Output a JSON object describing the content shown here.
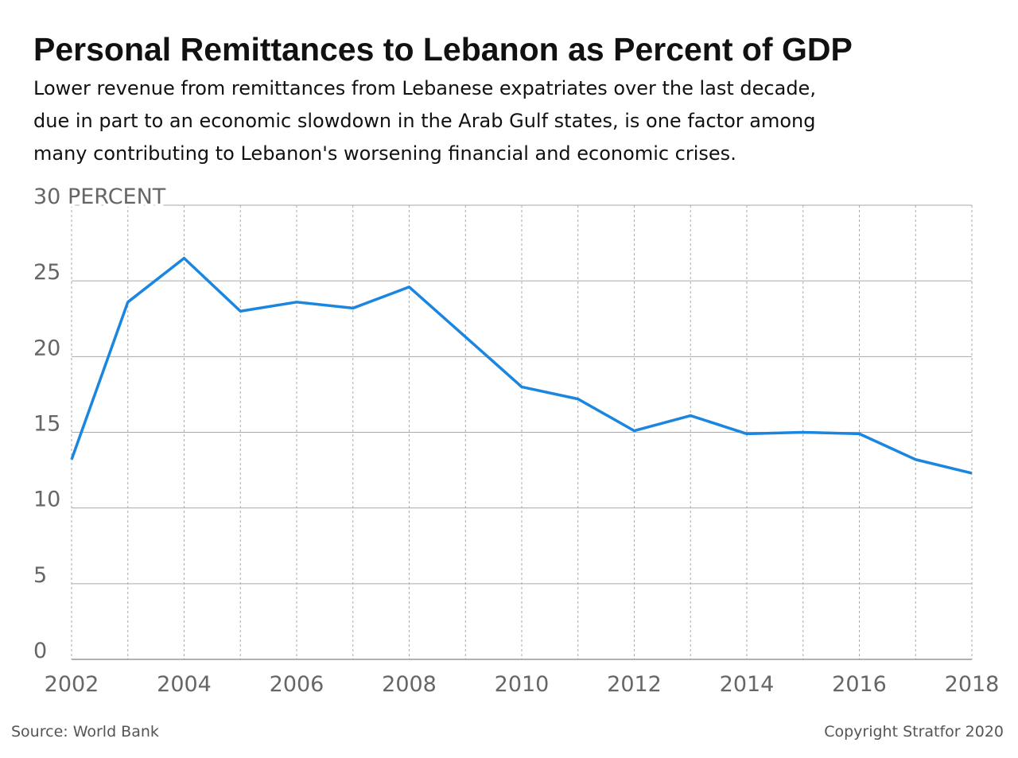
{
  "chart_data": {
    "type": "line",
    "title": "Personal Remittances to Lebanon as Percent of GDP",
    "subtitle": [
      "Lower revenue from remittances from Lebanese expatriates over the last decade,",
      "due in part to an economic slowdown in the Arab Gulf states, is one factor among",
      "many contributing to Lebanon's worsening financial and economic crises."
    ],
    "x": [
      2002,
      2003,
      2004,
      2005,
      2006,
      2007,
      2008,
      2009,
      2010,
      2011,
      2012,
      2013,
      2014,
      2015,
      2016,
      2017,
      2018
    ],
    "values": [
      13.2,
      23.6,
      26.5,
      23.0,
      23.6,
      23.2,
      24.6,
      21.3,
      18.0,
      17.2,
      15.1,
      16.1,
      14.9,
      15.0,
      14.9,
      13.2,
      12.3
    ],
    "color": "#1a86e0",
    "xlim": [
      2002,
      2018
    ],
    "xticks": [
      2002,
      2004,
      2006,
      2008,
      2010,
      2012,
      2014,
      2016,
      2018
    ],
    "ylim": [
      0,
      30
    ],
    "yticks": [
      0,
      5,
      10,
      15,
      20,
      25,
      {
        "value": 30,
        "label": "30 PERCENT"
      }
    ],
    "grid": true,
    "source": "Source: World Bank",
    "copyright": "Copyright Stratfor 2020"
  }
}
